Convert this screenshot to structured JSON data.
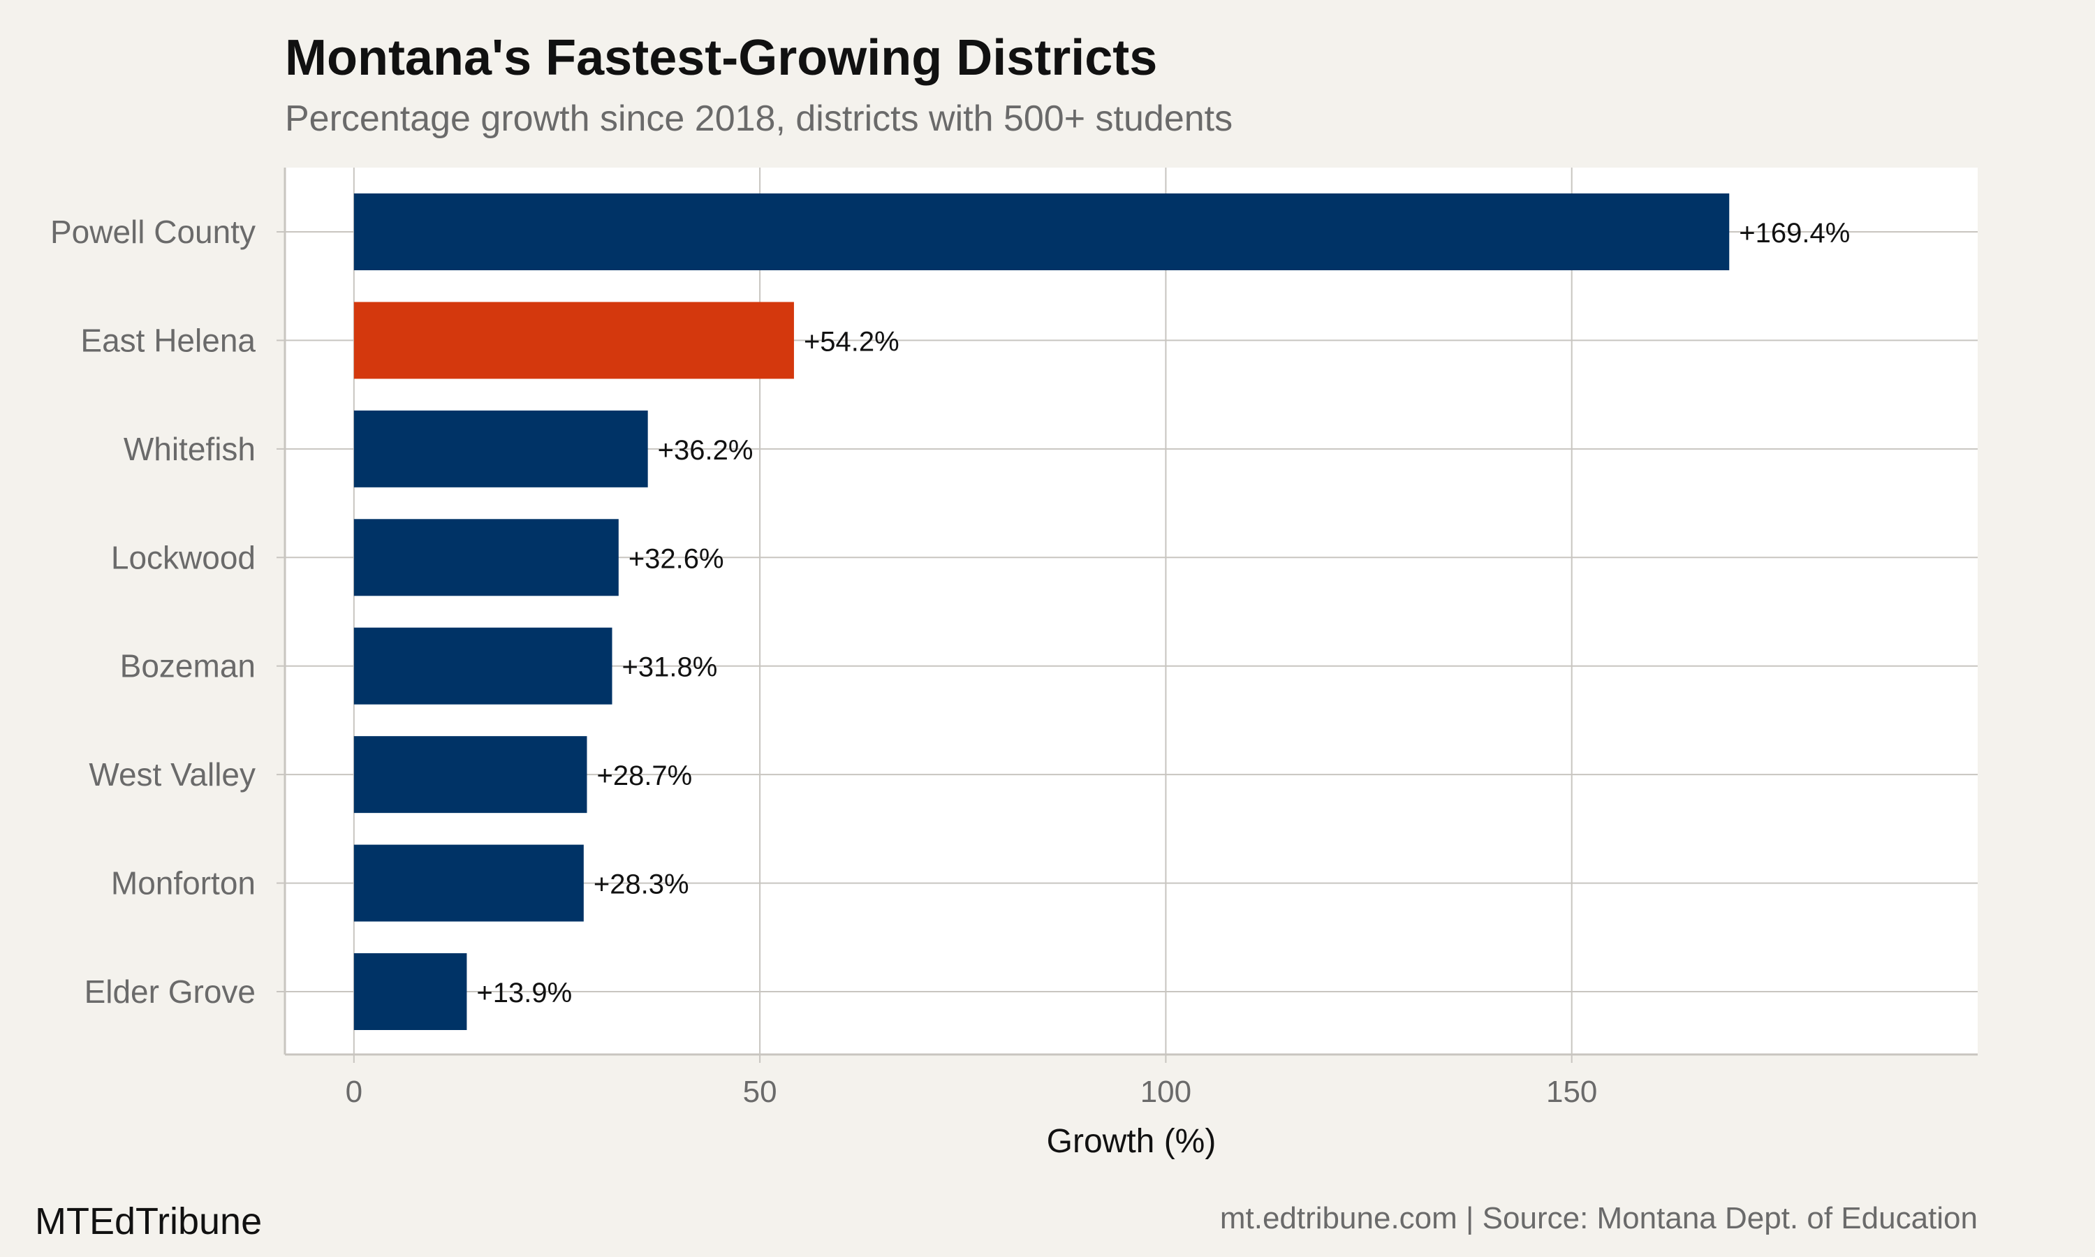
{
  "header": {
    "title": "Montana's Fastest-Growing Districts",
    "subtitle": "Percentage growth since 2018, districts with 500+ students"
  },
  "footer": {
    "brand": "MTEdTribune",
    "credit": "mt.edtribune.com | Source: Montana Dept. of Education"
  },
  "colors": {
    "bar": "#003366",
    "highlight": "#d4380d",
    "panel": "#ffffff",
    "background": "#f4f2ed",
    "grid": "#c8c5c0"
  },
  "chart_data": {
    "type": "bar",
    "orientation": "horizontal",
    "title": "Montana's Fastest-Growing Districts",
    "subtitle": "Percentage growth since 2018, districts with 500+ students",
    "xlabel": "Growth (%)",
    "ylabel": "",
    "xlim": [
      -8.5,
      200
    ],
    "x_ticks": [
      0,
      50,
      100,
      150
    ],
    "x_tick_labels": [
      "0",
      "50",
      "100",
      "150"
    ],
    "grid": true,
    "highlight_category": "East Helena",
    "categories": [
      "Powell County",
      "East Helena",
      "Whitefish",
      "Lockwood",
      "Bozeman",
      "West Valley",
      "Monforton",
      "Elder Grove"
    ],
    "values": [
      169.4,
      54.2,
      36.2,
      32.6,
      31.8,
      28.7,
      28.3,
      13.9
    ],
    "value_labels": [
      "+169.4%",
      "+54.2%",
      "+36.2%",
      "+32.6%",
      "+31.8%",
      "+28.7%",
      "+28.3%",
      "+13.9%"
    ]
  }
}
